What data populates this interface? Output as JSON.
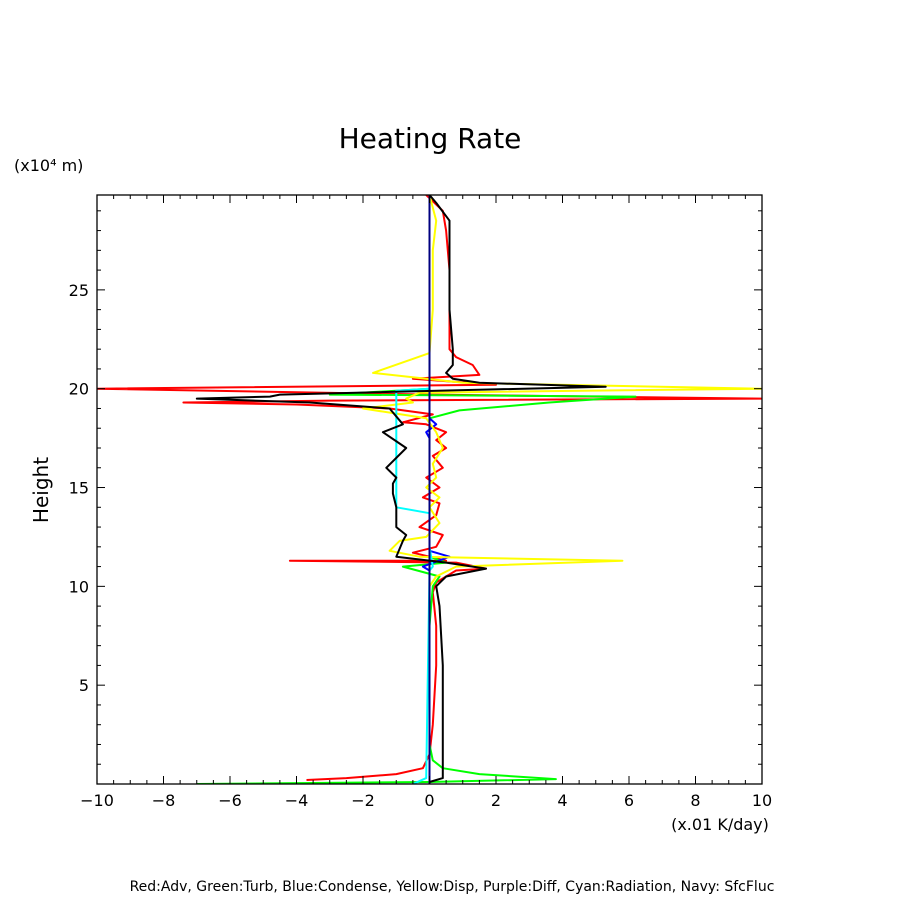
{
  "chart_data": {
    "type": "line",
    "title": "Heating Rate",
    "ylabel": "Height",
    "yunit": "(x10⁴ m)",
    "xunit": "(x.01 K/day)",
    "footer": "Red:Adv, Green:Turb, Blue:Condense, Yellow:Disp, Purple:Diff, Cyan:Radiation, Navy: SfcFluc",
    "xlim": [
      -10,
      10
    ],
    "ylim": [
      0,
      29.8
    ],
    "xticks": [
      -10,
      -8,
      -6,
      -4,
      -2,
      0,
      2,
      4,
      6,
      8,
      10
    ],
    "yticks": [
      5,
      10,
      15,
      20,
      25
    ],
    "grid": false,
    "legend": "none",
    "series": [
      {
        "name": "Adv",
        "color": "#ff0000",
        "points": [
          [
            -3.7,
            0.2
          ],
          [
            -2.5,
            0.3
          ],
          [
            -1,
            0.5
          ],
          [
            -0.2,
            0.8
          ],
          [
            0,
            1.5
          ],
          [
            0.1,
            3
          ],
          [
            0.2,
            6
          ],
          [
            0.2,
            8
          ],
          [
            0.1,
            9.7
          ],
          [
            0.2,
            10.2
          ],
          [
            0.8,
            10.8
          ],
          [
            1.7,
            10.9
          ],
          [
            0.8,
            11.2
          ],
          [
            -4.2,
            11.3
          ],
          [
            0.5,
            11.3
          ],
          [
            -0.5,
            11.7
          ],
          [
            0.2,
            12
          ],
          [
            0.4,
            12.6
          ],
          [
            -0.3,
            13
          ],
          [
            0.2,
            13.6
          ],
          [
            0.3,
            14.2
          ],
          [
            -0.2,
            14.5
          ],
          [
            0.3,
            15
          ],
          [
            -0.1,
            15.5
          ],
          [
            0.4,
            16
          ],
          [
            0.1,
            16.6
          ],
          [
            0.5,
            17
          ],
          [
            0.2,
            17.4
          ],
          [
            0.5,
            17.8
          ],
          [
            -0.1,
            18.2
          ],
          [
            -0.8,
            18.3
          ],
          [
            0.1,
            18.7
          ],
          [
            -1.2,
            19
          ],
          [
            -4,
            19.2
          ],
          [
            -7.4,
            19.3
          ],
          [
            -3,
            19.4
          ],
          [
            10,
            19.5
          ],
          [
            0,
            19.7
          ],
          [
            -10,
            20.0
          ],
          [
            2,
            20.2
          ],
          [
            -0.5,
            20.5
          ],
          [
            1.5,
            20.7
          ],
          [
            1.3,
            21.2
          ],
          [
            0.8,
            21.6
          ],
          [
            0.6,
            22
          ],
          [
            0.6,
            24
          ],
          [
            0.6,
            26
          ],
          [
            0.5,
            28
          ],
          [
            0.4,
            29
          ],
          [
            -0.1,
            29.8
          ]
        ]
      },
      {
        "name": "Turb",
        "color": "#00ff00",
        "points": [
          [
            -7,
            0.0
          ],
          [
            0,
            0.1
          ],
          [
            3.8,
            0.25
          ],
          [
            1.5,
            0.5
          ],
          [
            0.4,
            0.8
          ],
          [
            0.1,
            1.2
          ],
          [
            0,
            2
          ],
          [
            0,
            8
          ],
          [
            0.1,
            10
          ],
          [
            0.3,
            10.5
          ],
          [
            -0.8,
            11
          ],
          [
            0.5,
            11.2
          ],
          [
            0,
            11.5
          ],
          [
            0,
            18.5
          ],
          [
            0.9,
            18.9
          ],
          [
            3.6,
            19.3
          ],
          [
            6.2,
            19.6
          ],
          [
            -3,
            19.7
          ],
          [
            0,
            20
          ],
          [
            0,
            29.8
          ]
        ]
      },
      {
        "name": "Condense",
        "color": "#0000ff",
        "points": [
          [
            0,
            0.1
          ],
          [
            0,
            10.8
          ],
          [
            -0.2,
            11
          ],
          [
            0.6,
            11.5
          ],
          [
            0,
            11.8
          ],
          [
            0,
            17.5
          ],
          [
            -0.1,
            17.8
          ],
          [
            0.2,
            18.2
          ],
          [
            0,
            18.5
          ],
          [
            0,
            29.8
          ]
        ]
      },
      {
        "name": "Disp",
        "color": "#ffff00",
        "points": [
          [
            0,
            0.2
          ],
          [
            0,
            10
          ],
          [
            0.2,
            10.5
          ],
          [
            0.8,
            11
          ],
          [
            5.8,
            11.3
          ],
          [
            -0.3,
            11.5
          ],
          [
            -1.2,
            11.8
          ],
          [
            -0.9,
            12.3
          ],
          [
            -0.1,
            12.5
          ],
          [
            0.3,
            13.2
          ],
          [
            0,
            14
          ],
          [
            0.3,
            14.5
          ],
          [
            -0.1,
            15
          ],
          [
            0.2,
            15.5
          ],
          [
            0.1,
            16.2
          ],
          [
            0.4,
            17
          ],
          [
            0.2,
            17.8
          ],
          [
            -0.1,
            18.5
          ],
          [
            -2,
            19
          ],
          [
            -0.5,
            19.3
          ],
          [
            -0.7,
            19.5
          ],
          [
            -0.3,
            19.8
          ],
          [
            10,
            20.0
          ],
          [
            1,
            20.3
          ],
          [
            -1.7,
            20.8
          ],
          [
            0,
            21.8
          ],
          [
            0.1,
            24
          ],
          [
            0.1,
            27
          ],
          [
            0.2,
            28.5
          ],
          [
            0,
            29.8
          ]
        ]
      },
      {
        "name": "Diff",
        "color": "#ff00ff",
        "points": [
          [
            0,
            0
          ],
          [
            0,
            29.8
          ]
        ]
      },
      {
        "name": "Radiation",
        "color": "#00ffff",
        "points": [
          [
            -0.5,
            0
          ],
          [
            -0.1,
            0.3
          ],
          [
            0,
            10.8
          ],
          [
            0.1,
            11
          ],
          [
            0,
            12
          ],
          [
            0,
            13.7
          ],
          [
            -1,
            14
          ],
          [
            -1,
            19.9
          ],
          [
            0,
            20
          ],
          [
            0,
            29.8
          ]
        ]
      },
      {
        "name": "SfcFluc",
        "color": "#000080",
        "points": [
          [
            0,
            0
          ],
          [
            0,
            29.8
          ]
        ]
      },
      {
        "color": "#000000",
        "points": [
          [
            0,
            0.1
          ],
          [
            0.4,
            0.3
          ],
          [
            0.4,
            3
          ],
          [
            0.4,
            6
          ],
          [
            0.3,
            9
          ],
          [
            0.2,
            10
          ],
          [
            0.5,
            10.5
          ],
          [
            1.7,
            10.9
          ],
          [
            0.5,
            11.2
          ],
          [
            -1,
            11.5
          ],
          [
            -0.8,
            12.3
          ],
          [
            -0.7,
            12.6
          ],
          [
            -1,
            13
          ],
          [
            -1,
            14
          ],
          [
            -1.1,
            14.7
          ],
          [
            -1.1,
            15.2
          ],
          [
            -1,
            15.5
          ],
          [
            -1.3,
            16
          ],
          [
            -0.7,
            17
          ],
          [
            -1.4,
            17.8
          ],
          [
            -0.8,
            18.2
          ],
          [
            -1.2,
            19
          ],
          [
            -3.6,
            19.3
          ],
          [
            -7,
            19.5
          ],
          [
            -4.8,
            19.6
          ],
          [
            -4.5,
            19.7
          ],
          [
            5.3,
            20.1
          ],
          [
            1.5,
            20.3
          ],
          [
            0.7,
            20.5
          ],
          [
            0.5,
            20.8
          ],
          [
            0.7,
            21.2
          ],
          [
            0.7,
            22
          ],
          [
            0.6,
            24
          ],
          [
            0.6,
            26
          ],
          [
            0.6,
            28.5
          ],
          [
            0.2,
            29.4
          ],
          [
            0,
            29.8
          ]
        ]
      }
    ]
  }
}
